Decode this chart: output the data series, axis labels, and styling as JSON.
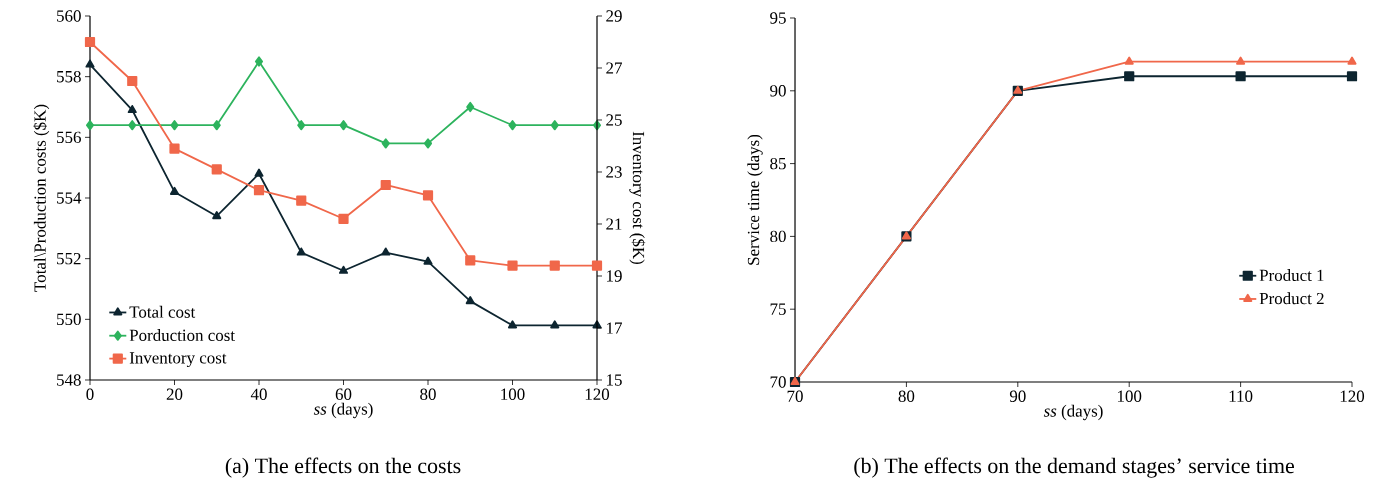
{
  "chart_data": [
    {
      "type": "line",
      "title": "(a) The effects on the costs",
      "xlabel": "*ss* (days)",
      "ylabel": "Total\\Production costs ($K)",
      "y2label": "Inventory cost ($K)",
      "x": [
        0,
        10,
        20,
        30,
        40,
        50,
        60,
        70,
        80,
        90,
        100,
        110,
        120
      ],
      "series": [
        {
          "name": "Total cost",
          "color": "#0d2530",
          "marker": "triangle",
          "values": [
            558.4,
            556.9,
            554.2,
            553.4,
            554.8,
            552.2,
            551.6,
            552.2,
            551.9,
            550.6,
            549.8,
            549.8,
            549.8
          ]
        },
        {
          "name": "Porduction cost",
          "color": "#2db35d",
          "marker": "diamond",
          "values": [
            556.4,
            556.4,
            556.4,
            556.4,
            558.5,
            556.4,
            556.4,
            555.8,
            555.8,
            557.0,
            556.4,
            556.4,
            556.4
          ]
        },
        {
          "name": "Inventory cost",
          "color": "#f0674a",
          "marker": "square",
          "axis": "y2",
          "values": [
            28.0,
            26.5,
            23.9,
            23.1,
            22.3,
            21.9,
            21.2,
            22.5,
            22.1,
            19.6,
            19.4,
            19.4,
            19.4
          ]
        }
      ],
      "xlim": [
        0,
        120
      ],
      "xticks": [
        0,
        20,
        40,
        60,
        80,
        100,
        120
      ],
      "ylim": [
        548,
        560
      ],
      "yticks": [
        548,
        550,
        552,
        554,
        556,
        558,
        560
      ],
      "y2lim": [
        15,
        29
      ],
      "y2ticks": [
        15,
        17,
        19,
        21,
        23,
        25,
        27,
        29
      ],
      "legend": "bottom left",
      "line_style": "solid"
    },
    {
      "type": "line",
      "title": "(b) The effects on the demand stages’ service time",
      "xlabel": "*ss* (days)",
      "ylabel": "Service time (days)",
      "x": [
        70,
        80,
        90,
        100,
        110,
        120
      ],
      "series": [
        {
          "name": "Product 1",
          "color": "#0d2530",
          "marker": "square",
          "values": [
            70,
            80,
            90,
            91,
            91,
            91
          ]
        },
        {
          "name": "Product 2",
          "color": "#f0674a",
          "marker": "triangle",
          "values": [
            70,
            80,
            90,
            92,
            92,
            92
          ]
        }
      ],
      "xlim": [
        70,
        120
      ],
      "xticks": [
        70,
        80,
        90,
        100,
        110,
        120
      ],
      "ylim": [
        70,
        95
      ],
      "yticks": [
        70,
        75,
        80,
        85,
        90,
        95
      ],
      "legend": "right",
      "line_style": "solid"
    }
  ]
}
